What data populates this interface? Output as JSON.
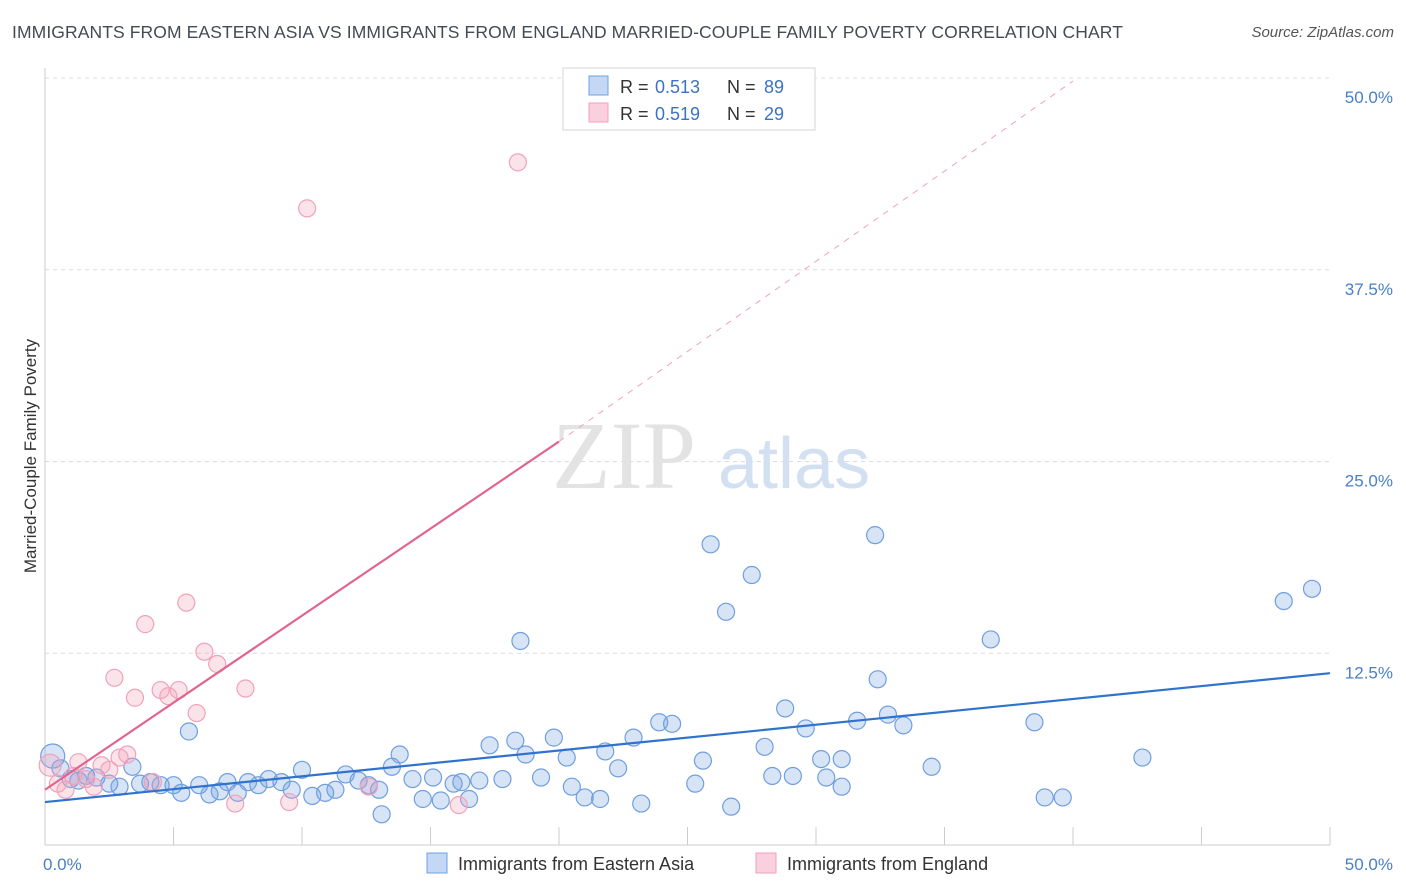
{
  "title": "IMMIGRANTS FROM EASTERN ASIA VS IMMIGRANTS FROM ENGLAND MARRIED-COUPLE FAMILY POVERTY CORRELATION CHART",
  "source": "Source: ZipAtlas.com",
  "watermark": {
    "zip": "ZIP",
    "atlas": "atlas"
  },
  "legend": {
    "r_label": "R =",
    "n_label": "N =",
    "rows": [
      {
        "r": "0.513",
        "n": "89"
      },
      {
        "r": "0.519",
        "n": "29"
      }
    ]
  },
  "chart_data": {
    "type": "scatter",
    "xlabel": "",
    "ylabel": "Married-Couple Family Poverty",
    "xlim": [
      0,
      50
    ],
    "ylim": [
      0,
      50
    ],
    "x_ticks": [
      "0.0%",
      "50.0%"
    ],
    "y_ticks": [
      "12.5%",
      "25.0%",
      "37.5%",
      "50.0%"
    ],
    "y_tick_values": [
      12.5,
      25,
      37.5,
      50
    ],
    "grid": "horizontal dashed",
    "legend_position": "top-center",
    "series": [
      {
        "name": "Immigrants from Eastern Asia",
        "color": "#6f9fe0",
        "trend_color": "#2f73cf",
        "trend": {
          "x": [
            0,
            50
          ],
          "y": [
            2.8,
            11.2
          ]
        },
        "points": [
          [
            0.3,
            5.8
          ],
          [
            0.6,
            5.0
          ],
          [
            1.0,
            4.3
          ],
          [
            1.3,
            4.2
          ],
          [
            1.6,
            4.5
          ],
          [
            2.0,
            4.4
          ],
          [
            2.5,
            4.0
          ],
          [
            2.9,
            3.8
          ],
          [
            3.4,
            5.1
          ],
          [
            3.7,
            4.0
          ],
          [
            4.1,
            4.1
          ],
          [
            4.5,
            3.9
          ],
          [
            5.0,
            3.9
          ],
          [
            5.3,
            3.4
          ],
          [
            5.6,
            7.4
          ],
          [
            6.0,
            3.9
          ],
          [
            6.4,
            3.3
          ],
          [
            6.8,
            3.5
          ],
          [
            7.1,
            4.1
          ],
          [
            7.5,
            3.4
          ],
          [
            7.9,
            4.1
          ],
          [
            8.3,
            3.9
          ],
          [
            8.7,
            4.3
          ],
          [
            9.2,
            4.1
          ],
          [
            9.6,
            3.6
          ],
          [
            10.0,
            4.9
          ],
          [
            10.4,
            3.2
          ],
          [
            10.9,
            3.4
          ],
          [
            11.3,
            3.6
          ],
          [
            11.7,
            4.6
          ],
          [
            12.2,
            4.2
          ],
          [
            12.6,
            3.9
          ],
          [
            13.0,
            3.6
          ],
          [
            13.1,
            2.0
          ],
          [
            13.5,
            5.1
          ],
          [
            13.8,
            5.9
          ],
          [
            14.3,
            4.3
          ],
          [
            14.7,
            3.0
          ],
          [
            15.1,
            4.4
          ],
          [
            15.4,
            2.9
          ],
          [
            15.9,
            4.0
          ],
          [
            16.2,
            4.1
          ],
          [
            16.5,
            3.0
          ],
          [
            16.9,
            4.2
          ],
          [
            17.3,
            6.5
          ],
          [
            17.8,
            4.3
          ],
          [
            18.3,
            6.8
          ],
          [
            18.7,
            5.9
          ],
          [
            19.3,
            4.4
          ],
          [
            19.8,
            7.0
          ],
          [
            20.3,
            5.7
          ],
          [
            20.5,
            3.8
          ],
          [
            21.0,
            3.1
          ],
          [
            21.6,
            3.0
          ],
          [
            21.8,
            6.1
          ],
          [
            22.3,
            5.0
          ],
          [
            22.9,
            7.0
          ],
          [
            23.2,
            2.7
          ],
          [
            23.9,
            8.0
          ],
          [
            24.4,
            7.9
          ],
          [
            25.3,
            4.0
          ],
          [
            25.6,
            5.5
          ],
          [
            25.9,
            19.6
          ],
          [
            26.5,
            15.2
          ],
          [
            26.7,
            2.5
          ],
          [
            27.5,
            17.6
          ],
          [
            28.0,
            6.4
          ],
          [
            28.3,
            4.5
          ],
          [
            28.8,
            8.9
          ],
          [
            29.1,
            4.5
          ],
          [
            29.6,
            7.6
          ],
          [
            30.2,
            5.6
          ],
          [
            30.4,
            4.4
          ],
          [
            31.0,
            5.6
          ],
          [
            31.6,
            8.1
          ],
          [
            32.3,
            20.2
          ],
          [
            32.4,
            10.8
          ],
          [
            32.8,
            8.5
          ],
          [
            33.4,
            7.8
          ],
          [
            34.5,
            5.1
          ],
          [
            36.8,
            13.4
          ],
          [
            38.5,
            8.0
          ],
          [
            38.9,
            3.1
          ],
          [
            39.6,
            3.1
          ],
          [
            42.7,
            5.7
          ],
          [
            48.2,
            15.9
          ],
          [
            49.3,
            16.7
          ],
          [
            18.5,
            13.3
          ],
          [
            31.0,
            3.8
          ]
        ]
      },
      {
        "name": "Immigrants from England",
        "color": "#f2a1bb",
        "trend_color": "#e0668f",
        "trend": {
          "x": [
            0,
            20
          ],
          "y": [
            3.6,
            26.3
          ]
        },
        "trend_dashed": {
          "x": [
            20,
            40
          ],
          "y": [
            26.3,
            49.8
          ]
        },
        "points": [
          [
            0.2,
            5.2
          ],
          [
            0.5,
            4.0
          ],
          [
            0.8,
            3.6
          ],
          [
            1.1,
            4.5
          ],
          [
            1.3,
            5.4
          ],
          [
            1.6,
            4.3
          ],
          [
            1.9,
            3.8
          ],
          [
            2.2,
            5.2
          ],
          [
            2.5,
            4.9
          ],
          [
            2.7,
            10.9
          ],
          [
            2.9,
            5.7
          ],
          [
            3.2,
            5.9
          ],
          [
            3.5,
            9.6
          ],
          [
            3.9,
            14.4
          ],
          [
            4.2,
            4.1
          ],
          [
            4.5,
            10.1
          ],
          [
            4.8,
            9.7
          ],
          [
            5.2,
            10.1
          ],
          [
            5.5,
            15.8
          ],
          [
            5.9,
            8.6
          ],
          [
            6.2,
            12.6
          ],
          [
            6.7,
            11.8
          ],
          [
            7.4,
            2.7
          ],
          [
            7.8,
            10.2
          ],
          [
            9.5,
            2.8
          ],
          [
            10.2,
            41.5
          ],
          [
            12.6,
            3.8
          ],
          [
            16.1,
            2.6
          ],
          [
            18.4,
            44.5
          ]
        ]
      }
    ]
  }
}
